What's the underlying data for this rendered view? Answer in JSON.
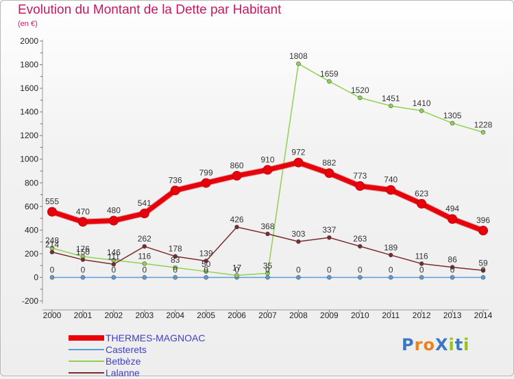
{
  "header": {
    "title": "Evolution du Montant de la Dette par Habitant",
    "subtitle": "(en €)"
  },
  "logo": {
    "text": "ProXiti",
    "letter_colors": [
      "#3a78c2",
      "#e9821f",
      "#e9821f",
      "#3a78c2",
      "#9ac01c",
      "#3a78c2",
      "#9ac01c"
    ]
  },
  "colors": {
    "title": "#c8195f",
    "grid": "#ffffff",
    "axis": "#888888"
  },
  "chart_data": {
    "type": "line",
    "title": "Evolution du Montant de la Dette par Habitant",
    "subtitle": "(en €)",
    "x": [
      "2000",
      "2001",
      "2002",
      "2003",
      "2004",
      "2005",
      "2006",
      "2007",
      "2008",
      "2009",
      "2010",
      "2011",
      "2012",
      "2013",
      "2014"
    ],
    "yticks": [
      "-200",
      "0",
      "200",
      "400",
      "600",
      "800",
      "1000",
      "1200",
      "1400",
      "1600",
      "1800",
      "2000"
    ],
    "ylim": [
      -200,
      2000
    ],
    "grid": false,
    "legend_position": "bottom-left",
    "series": [
      {
        "name": "THERMES-MAGNOAC",
        "color": "#e8000b",
        "label_color": "#4040c0",
        "values": [
          555,
          470,
          480,
          541,
          736,
          799,
          860,
          910,
          972,
          882,
          773,
          740,
          623,
          494,
          396
        ],
        "labels": [
          "555",
          "470",
          "480",
          "541",
          "736",
          "799",
          "860",
          "910",
          "972",
          "882",
          "773",
          "740",
          "623",
          "494",
          "396"
        ]
      },
      {
        "name": "Casterets",
        "color": "#5b9bd5",
        "label_color": "#4040c0",
        "values": [
          0,
          0,
          0,
          0,
          0,
          0,
          0,
          0,
          0,
          0,
          0,
          0,
          0,
          0,
          0
        ],
        "labels": [
          "0",
          "0",
          "0",
          "0",
          "0",
          "0",
          "0",
          "0",
          "0",
          "0",
          "0",
          "0",
          "0",
          "0",
          "0"
        ]
      },
      {
        "name": "Betbèze",
        "color": "#8fd14f",
        "label_color": "#4040c0",
        "values": [
          248,
          176,
          146,
          116,
          83,
          50,
          17,
          35,
          1808,
          1659,
          1520,
          1451,
          1410,
          1305,
          1228
        ],
        "labels": [
          "248",
          "176",
          "146",
          "116",
          "83",
          "50",
          "17",
          "35",
          "1808",
          "1659",
          "1520",
          "1451",
          "1410",
          "1305",
          "1228"
        ]
      },
      {
        "name": "Lalanne",
        "color": "#7a2a2a",
        "label_color": "#4040c0",
        "values": [
          214,
          150,
          111,
          262,
          178,
          139,
          426,
          368,
          303,
          337,
          263,
          189,
          116,
          86,
          59
        ],
        "labels": [
          "214",
          "150",
          "111",
          "262",
          "178",
          "139",
          "426",
          "368",
          "303",
          "337",
          "263",
          "189",
          "116",
          "86",
          "59"
        ]
      }
    ]
  }
}
